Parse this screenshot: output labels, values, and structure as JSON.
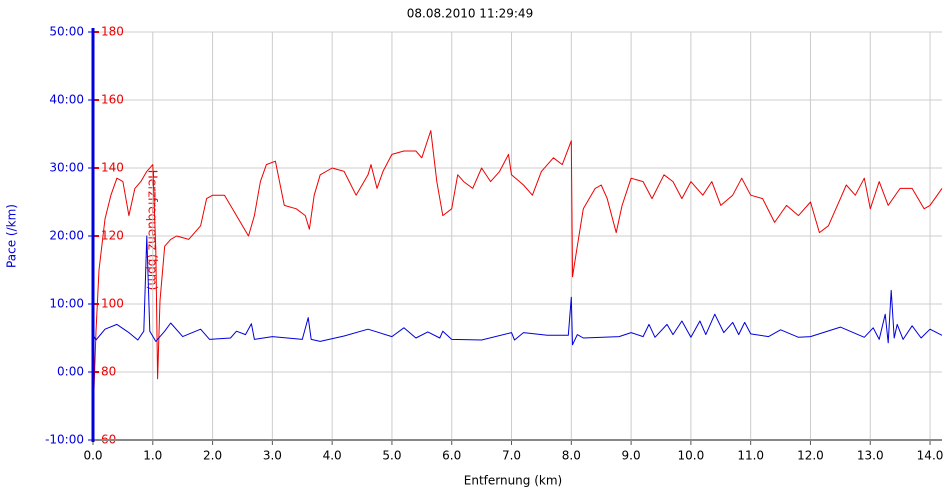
{
  "chart_data": {
    "type": "line",
    "title": "08.08.2010 11:29:49",
    "xlabel": "Entfernung (km)",
    "ylabel": "Pace (/km)",
    "y2label": "Herzfrequenz (bpm)",
    "grid": true,
    "xlim": [
      0,
      14.2
    ],
    "xticks": [
      {
        "value": 0,
        "label": "0.0"
      },
      {
        "value": 1,
        "label": "1.0"
      },
      {
        "value": 2,
        "label": "2.0"
      },
      {
        "value": 3,
        "label": "3.0"
      },
      {
        "value": 4,
        "label": "4.0"
      },
      {
        "value": 5,
        "label": "5.0"
      },
      {
        "value": 6,
        "label": "6.0"
      },
      {
        "value": 7,
        "label": "7.0"
      },
      {
        "value": 8,
        "label": "8.0"
      },
      {
        "value": 9,
        "label": "9.0"
      },
      {
        "value": 10,
        "label": "10.0"
      },
      {
        "value": 11,
        "label": "11.0"
      },
      {
        "value": 12,
        "label": "12.0"
      },
      {
        "value": 13,
        "label": "13.0"
      },
      {
        "value": 14,
        "label": "14.0"
      }
    ],
    "ylim": [
      -10,
      50
    ],
    "yticks": [
      {
        "value": -10,
        "label": "-10:00"
      },
      {
        "value": 0,
        "label": "0:00"
      },
      {
        "value": 10,
        "label": "10:00"
      },
      {
        "value": 20,
        "label": "20:00"
      },
      {
        "value": 30,
        "label": "30:00"
      },
      {
        "value": 40,
        "label": "40:00"
      },
      {
        "value": 50,
        "label": "50:00"
      }
    ],
    "y2lim": [
      60,
      180
    ],
    "y2ticks": [
      60,
      80,
      100,
      120,
      140,
      160,
      180
    ],
    "ycolor": "#0000dd",
    "y2color": "#ee0000",
    "series": [
      {
        "color": "#ee0000",
        "axis": "y2",
        "x": [
          0,
          0.05,
          0.1,
          0.2,
          0.3,
          0.4,
          0.5,
          0.6,
          0.7,
          0.8,
          0.9,
          1.0,
          1.05,
          1.08,
          1.12,
          1.2,
          1.3,
          1.4,
          1.6,
          1.8,
          1.9,
          2.0,
          2.2,
          2.4,
          2.6,
          2.7,
          2.8,
          2.9,
          3.05,
          3.2,
          3.4,
          3.55,
          3.62,
          3.7,
          3.8,
          4.0,
          4.2,
          4.4,
          4.6,
          4.65,
          4.75,
          4.85,
          5.0,
          5.2,
          5.4,
          5.5,
          5.65,
          5.75,
          5.85,
          6.0,
          6.1,
          6.2,
          6.35,
          6.5,
          6.65,
          6.8,
          6.95,
          7.0,
          7.2,
          7.35,
          7.5,
          7.7,
          7.85,
          8.0,
          8.02,
          8.1,
          8.2,
          8.4,
          8.5,
          8.6,
          8.75,
          8.85,
          9.0,
          9.2,
          9.35,
          9.55,
          9.7,
          9.85,
          10.0,
          10.2,
          10.35,
          10.5,
          10.7,
          10.85,
          11.0,
          11.2,
          11.4,
          11.6,
          11.8,
          12.0,
          12.15,
          12.3,
          12.5,
          12.6,
          12.75,
          12.9,
          13.0,
          13.15,
          13.3,
          13.5,
          13.7,
          13.9,
          14.0,
          14.2
        ],
        "values": [
          66,
          92,
          110,
          125,
          132,
          137,
          136,
          126,
          134,
          136,
          139,
          141,
          116,
          78,
          101,
          117,
          119,
          120,
          119,
          123,
          131,
          132,
          132,
          126,
          120,
          126,
          136,
          141,
          142,
          129,
          128,
          126,
          122,
          132,
          138,
          140,
          139,
          132,
          138,
          141,
          134,
          139,
          144,
          145,
          145,
          143,
          151,
          136,
          126,
          128,
          138,
          136,
          134,
          140,
          136,
          139,
          144,
          138,
          135,
          132,
          139,
          143,
          141,
          148,
          108,
          117,
          128,
          134,
          135,
          131,
          121,
          129,
          137,
          136,
          131,
          138,
          136,
          131,
          136,
          132,
          136,
          129,
          132,
          137,
          132,
          131,
          124,
          129,
          126,
          130,
          121,
          123,
          131,
          135,
          132,
          137,
          128,
          136,
          129,
          134,
          134,
          128,
          129,
          134
        ]
      },
      {
        "color": "#0000dd",
        "axis": "y",
        "x": [
          0,
          0.05,
          0.2,
          0.4,
          0.6,
          0.75,
          0.85,
          0.9,
          0.95,
          1.05,
          1.2,
          1.3,
          1.5,
          1.8,
          1.95,
          2.3,
          2.4,
          2.55,
          2.65,
          2.7,
          3.0,
          3.5,
          3.6,
          3.65,
          3.8,
          4.2,
          4.6,
          5.0,
          5.2,
          5.4,
          5.6,
          5.8,
          5.85,
          6.0,
          6.5,
          7.0,
          7.05,
          7.2,
          7.6,
          7.95,
          8.0,
          8.02,
          8.1,
          8.2,
          8.8,
          9.0,
          9.2,
          9.3,
          9.4,
          9.6,
          9.7,
          9.85,
          10.0,
          10.15,
          10.25,
          10.4,
          10.55,
          10.7,
          10.8,
          10.9,
          11.0,
          11.3,
          11.5,
          11.8,
          12.0,
          12.5,
          12.9,
          13.05,
          13.15,
          13.25,
          13.3,
          13.35,
          13.4,
          13.45,
          13.55,
          13.7,
          13.85,
          14.0,
          14.2
        ],
        "values": [
          5.5,
          4.7,
          6.3,
          7,
          5.8,
          4.7,
          6,
          20,
          6,
          4.5,
          6,
          7.2,
          5.2,
          6.3,
          4.8,
          5,
          6,
          5.5,
          7.1,
          4.8,
          5.2,
          4.8,
          8,
          4.8,
          4.5,
          5.3,
          6.3,
          5.2,
          6.5,
          5,
          5.9,
          5,
          6,
          4.8,
          4.7,
          5.8,
          4.7,
          5.8,
          5.4,
          5.4,
          11,
          4,
          5.5,
          5,
          5.2,
          5.8,
          5.2,
          7,
          5.1,
          7,
          5.5,
          7.5,
          5.1,
          7.5,
          5.5,
          8.5,
          5.8,
          7.3,
          5.5,
          7.3,
          5.6,
          5.2,
          6.2,
          5.1,
          5.2,
          6.6,
          5.1,
          6.5,
          4.8,
          8.5,
          4.3,
          12,
          5,
          7,
          4.8,
          6.8,
          5,
          6.3,
          5.4
        ]
      }
    ]
  }
}
